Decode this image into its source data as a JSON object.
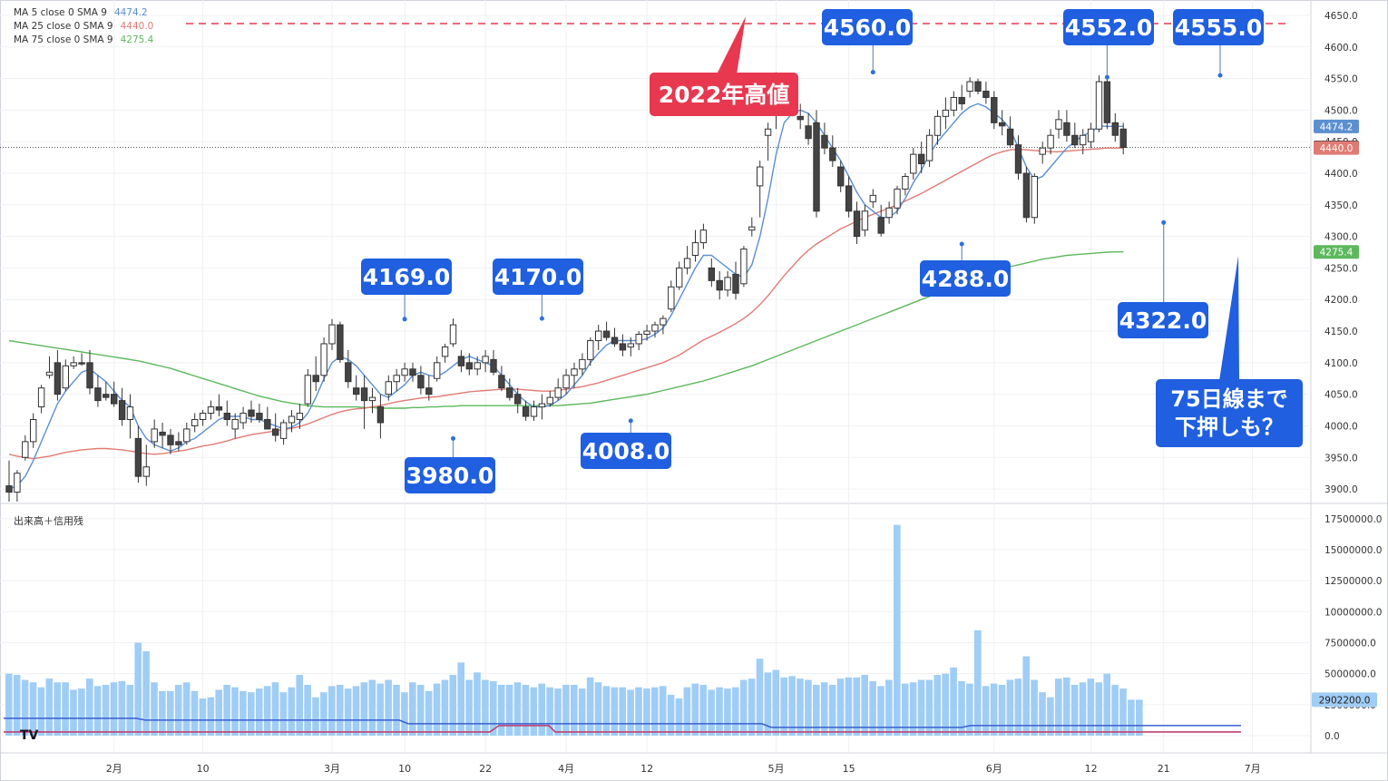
{
  "legend": [
    {
      "label": "MA 5 close 0 SMA 9",
      "value": "4474.2",
      "color": "#5b8fd0"
    },
    {
      "label": "MA 25 close 0 SMA 9",
      "value": "4440.0",
      "color": "#e07b74"
    },
    {
      "label": "MA 75 close 0 SMA 9",
      "value": "4275.4",
      "color": "#5cb85c"
    }
  ],
  "volume_pane_label": "出来高＋信用残",
  "logo_text": "TV",
  "colors": {
    "up_candle": "#ffffff",
    "down_candle": "#444444",
    "ma5": "#5b8fd0",
    "ma25": "#e07b74",
    "ma75": "#5cb85c",
    "volume": "#9fcdf5",
    "callout_blue": "#1f5fe0",
    "callout_red": "#e8384f",
    "high_line": "#e8384f",
    "margin_buy": "#3a5fd0",
    "margin_sell": "#c04070"
  },
  "price_axis": {
    "ticks": [
      "4650.0",
      "4600.0",
      "4550.0",
      "4500.0",
      "4450.0",
      "4400.0",
      "4350.0",
      "4300.0",
      "4250.0",
      "4200.0",
      "4150.0",
      "4100.0",
      "4050.0",
      "4000.0",
      "3950.0",
      "3900.0"
    ],
    "badges": [
      {
        "text": "4474.2",
        "bg": "#5b8fd0"
      },
      {
        "text": "4441.0",
        "bg": "#333333"
      },
      {
        "text": "4440.0",
        "bg": "#e07b74"
      },
      {
        "text": "4275.4",
        "bg": "#5cb85c"
      }
    ]
  },
  "volume_axis": {
    "ticks": [
      "17500000.0",
      "15000000.0",
      "12500000.0",
      "10000000.0",
      "7500000.0",
      "5000000.0",
      "2500000.0",
      "0.0"
    ],
    "badge": "2902200.0"
  },
  "x_axis_labels": [
    "2月",
    "10",
    "3月",
    "10",
    "22",
    "4月",
    "12",
    "5月",
    "15",
    "6月",
    "12",
    "21",
    "7月"
  ],
  "annotations": {
    "high_2022_label": "2022年高値",
    "callouts": [
      "4169.0",
      "4170.0",
      "3980.0",
      "4008.0",
      "4560.0",
      "4288.0",
      "4552.0",
      "4555.0",
      "4322.0"
    ],
    "note": [
      "75日線まで",
      "下押しも？"
    ]
  },
  "chart_data": {
    "type": "candlestick",
    "price_range": [
      3880,
      4660
    ],
    "volume_range": [
      0,
      18000000
    ],
    "high_2022": 4637,
    "last_price": 4441.0,
    "ohlc": [
      [
        3905,
        3945,
        3880,
        3895
      ],
      [
        3895,
        3930,
        3880,
        3925
      ],
      [
        3950,
        3985,
        3945,
        3975
      ],
      [
        3975,
        4020,
        3965,
        4010
      ],
      [
        4030,
        4065,
        4020,
        4060
      ],
      [
        4080,
        4110,
        4075,
        4085
      ],
      [
        4100,
        4120,
        4040,
        4050
      ],
      [
        4060,
        4105,
        4055,
        4095
      ],
      [
        4095,
        4110,
        4090,
        4100
      ],
      [
        4100,
        4115,
        4095,
        4098
      ],
      [
        4100,
        4120,
        4050,
        4060
      ],
      [
        4060,
        4080,
        4030,
        4040
      ],
      [
        4050,
        4070,
        4040,
        4045
      ],
      [
        4050,
        4070,
        4030,
        4035
      ],
      [
        4040,
        4060,
        4000,
        4010
      ],
      [
        4010,
        4050,
        3980,
        4030
      ],
      [
        3980,
        4000,
        3910,
        3920
      ],
      [
        3920,
        3970,
        3905,
        3935
      ],
      [
        3975,
        4010,
        3965,
        3995
      ],
      [
        3990,
        4005,
        3965,
        3985
      ],
      [
        3985,
        3995,
        3955,
        3970
      ],
      [
        3975,
        3990,
        3960,
        3970
      ],
      [
        3975,
        4005,
        3970,
        3995
      ],
      [
        4000,
        4020,
        3990,
        4010
      ],
      [
        4010,
        4025,
        4000,
        4020
      ],
      [
        4020,
        4040,
        4010,
        4030
      ],
      [
        4030,
        4050,
        4015,
        4025
      ],
      [
        4020,
        4040,
        4000,
        4010
      ],
      [
        3995,
        4020,
        3980,
        4010
      ],
      [
        4005,
        4030,
        3995,
        4020
      ],
      [
        4025,
        4040,
        4005,
        4015
      ],
      [
        4020,
        4035,
        4005,
        4010
      ],
      [
        4010,
        4030,
        4000,
        3995
      ],
      [
        3995,
        4020,
        3975,
        3985
      ],
      [
        3980,
        4010,
        3970,
        4005
      ],
      [
        4005,
        4025,
        3990,
        4015
      ],
      [
        4010,
        4035,
        3995,
        4020
      ],
      [
        4035,
        4090,
        4030,
        4080
      ],
      [
        4080,
        4110,
        4055,
        4070
      ],
      [
        4080,
        4140,
        4070,
        4130
      ],
      [
        4130,
        4169,
        4120,
        4160
      ],
      [
        4160,
        4165,
        4100,
        4105
      ],
      [
        4100,
        4120,
        4060,
        4070
      ],
      [
        4060,
        4080,
        4040,
        4050
      ],
      [
        4060,
        4080,
        3995,
        4040
      ],
      [
        4040,
        4060,
        4020,
        4045
      ],
      [
        4030,
        4050,
        3980,
        4005
      ],
      [
        4050,
        4080,
        4040,
        4070
      ],
      [
        4070,
        4090,
        4055,
        4080
      ],
      [
        4080,
        4100,
        4070,
        4090
      ],
      [
        4090,
        4100,
        4070,
        4080
      ],
      [
        4080,
        4095,
        4050,
        4060
      ],
      [
        4060,
        4080,
        4040,
        4050
      ],
      [
        4075,
        4110,
        4070,
        4100
      ],
      [
        4110,
        4130,
        4100,
        4125
      ],
      [
        4130,
        4170,
        4125,
        4160
      ],
      [
        4110,
        4120,
        4085,
        4095
      ],
      [
        4100,
        4115,
        4080,
        4090
      ],
      [
        4090,
        4110,
        4080,
        4100
      ],
      [
        4100,
        4120,
        4085,
        4110
      ],
      [
        4105,
        4120,
        4080,
        4085
      ],
      [
        4080,
        4095,
        4055,
        4060
      ],
      [
        4060,
        4075,
        4040,
        4045
      ],
      [
        4050,
        4060,
        4020,
        4035
      ],
      [
        4030,
        4040,
        4008,
        4015
      ],
      [
        4015,
        4040,
        4008,
        4030
      ],
      [
        4030,
        4050,
        4010,
        4035
      ],
      [
        4035,
        4055,
        4030,
        4045
      ],
      [
        4045,
        4075,
        4040,
        4060
      ],
      [
        4060,
        4090,
        4050,
        4080
      ],
      [
        4080,
        4100,
        4060,
        4090
      ],
      [
        4090,
        4115,
        4080,
        4105
      ],
      [
        4105,
        4140,
        4095,
        4135
      ],
      [
        4135,
        4160,
        4120,
        4150
      ],
      [
        4150,
        4165,
        4135,
        4140
      ],
      [
        4140,
        4155,
        4125,
        4130
      ],
      [
        4130,
        4145,
        4110,
        4120
      ],
      [
        4125,
        4140,
        4110,
        4130
      ],
      [
        4130,
        4150,
        4120,
        4145
      ],
      [
        4145,
        4160,
        4135,
        4150
      ],
      [
        4150,
        4165,
        4140,
        4160
      ],
      [
        4160,
        4175,
        4145,
        4170
      ],
      [
        4185,
        4230,
        4180,
        4220
      ],
      [
        4220,
        4260,
        4215,
        4250
      ],
      [
        4250,
        4285,
        4240,
        4265
      ],
      [
        4270,
        4310,
        4260,
        4290
      ],
      [
        4290,
        4320,
        4280,
        4310
      ],
      [
        4250,
        4265,
        4220,
        4230
      ],
      [
        4230,
        4245,
        4200,
        4215
      ],
      [
        4215,
        4245,
        4205,
        4235
      ],
      [
        4240,
        4260,
        4200,
        4210
      ],
      [
        4225,
        4285,
        4220,
        4280
      ],
      [
        4310,
        4330,
        4300,
        4315
      ],
      [
        4380,
        4420,
        4330,
        4410
      ],
      [
        4460,
        4480,
        4420,
        4470
      ],
      [
        4500,
        4560,
        4470,
        4520
      ],
      [
        4520,
        4540,
        4510,
        4525
      ],
      [
        4510,
        4525,
        4490,
        4500
      ],
      [
        4490,
        4510,
        4470,
        4485
      ],
      [
        4475,
        4495,
        4445,
        4455
      ],
      [
        4480,
        4500,
        4330,
        4340
      ],
      [
        4460,
        4480,
        4430,
        4440
      ],
      [
        4440,
        4460,
        4410,
        4420
      ],
      [
        4410,
        4420,
        4370,
        4380
      ],
      [
        4380,
        4395,
        4330,
        4340
      ],
      [
        4340,
        4355,
        4288,
        4300
      ],
      [
        4310,
        4350,
        4300,
        4340
      ],
      [
        4355,
        4375,
        4345,
        4365
      ],
      [
        4330,
        4350,
        4300,
        4305
      ],
      [
        4330,
        4355,
        4320,
        4345
      ],
      [
        4345,
        4380,
        4335,
        4375
      ],
      [
        4375,
        4400,
        4365,
        4395
      ],
      [
        4400,
        4440,
        4390,
        4430
      ],
      [
        4430,
        4450,
        4400,
        4415
      ],
      [
        4420,
        4470,
        4410,
        4460
      ],
      [
        4460,
        4500,
        4445,
        4490
      ],
      [
        4490,
        4520,
        4470,
        4500
      ],
      [
        4500,
        4530,
        4490,
        4520
      ],
      [
        4520,
        4540,
        4500,
        4510
      ],
      [
        4530,
        4552,
        4520,
        4545
      ],
      [
        4545,
        4550,
        4525,
        4530
      ],
      [
        4530,
        4545,
        4510,
        4520
      ],
      [
        4520,
        4530,
        4470,
        4480
      ],
      [
        4480,
        4500,
        4460,
        4475
      ],
      [
        4470,
        4490,
        4440,
        4445
      ],
      [
        4445,
        4460,
        4390,
        4400
      ],
      [
        4400,
        4410,
        4322,
        4330
      ],
      [
        4330,
        4400,
        4320,
        4395
      ],
      [
        4430,
        4450,
        4415,
        4440
      ],
      [
        4440,
        4470,
        4430,
        4460
      ],
      [
        4470,
        4500,
        4455,
        4485
      ],
      [
        4480,
        4500,
        4450,
        4460
      ],
      [
        4460,
        4480,
        4440,
        4445
      ],
      [
        4445,
        4470,
        4430,
        4460
      ],
      [
        4450,
        4480,
        4440,
        4470
      ],
      [
        4470,
        4555,
        4465,
        4545
      ],
      [
        4545,
        4555,
        4470,
        4480
      ],
      [
        4480,
        4495,
        4450,
        4460
      ],
      [
        4470,
        4480,
        4430,
        4441
      ]
    ],
    "ma5": [
      3900,
      3905,
      3920,
      3945,
      3975,
      4005,
      4035,
      4055,
      4070,
      4085,
      4090,
      4080,
      4070,
      4055,
      4040,
      4030,
      4000,
      3980,
      3970,
      3965,
      3960,
      3965,
      3975,
      3980,
      3990,
      4000,
      4010,
      4015,
      4015,
      4015,
      4010,
      4010,
      4005,
      4000,
      3995,
      3998,
      4005,
      4020,
      4045,
      4075,
      4100,
      4110,
      4105,
      4095,
      4080,
      4065,
      4050,
      4045,
      4055,
      4065,
      4080,
      4085,
      4080,
      4078,
      4085,
      4095,
      4105,
      4110,
      4105,
      4100,
      4095,
      4080,
      4065,
      4050,
      4038,
      4030,
      4030,
      4032,
      4040,
      4050,
      4065,
      4080,
      4100,
      4115,
      4128,
      4135,
      4135,
      4135,
      4135,
      4138,
      4145,
      4155,
      4175,
      4200,
      4225,
      4250,
      4270,
      4270,
      4260,
      4250,
      4240,
      4235,
      4255,
      4300,
      4360,
      4430,
      4480,
      4495,
      4500,
      4495,
      4480,
      4460,
      4440,
      4420,
      4395,
      4370,
      4350,
      4340,
      4330,
      4330,
      4340,
      4360,
      4385,
      4405,
      4430,
      4450,
      4465,
      4480,
      4495,
      4505,
      4510,
      4505,
      4495,
      4485,
      4470,
      4440,
      4410,
      4390,
      4395,
      4410,
      4425,
      4440,
      4450,
      4460,
      4465,
      4475,
      4474.2,
      4474.2,
      4474.2
    ],
    "ma25": [
      3955,
      3952,
      3950,
      3948,
      3950,
      3952,
      3955,
      3958,
      3960,
      3962,
      3963,
      3964,
      3964,
      3963,
      3962,
      3960,
      3958,
      3956,
      3955,
      3956,
      3958,
      3960,
      3962,
      3965,
      3968,
      3970,
      3973,
      3976,
      3980,
      3983,
      3986,
      3988,
      3990,
      3992,
      3994,
      3996,
      3999,
      4003,
      4008,
      4013,
      4018,
      4022,
      4025,
      4027,
      4028,
      4030,
      4032,
      4035,
      4038,
      4040,
      4042,
      4044,
      4045,
      4046,
      4048,
      4050,
      4052,
      4054,
      4055,
      4056,
      4057,
      4058,
      4058,
      4058,
      4057,
      4056,
      4055,
      4055,
      4056,
      4058,
      4060,
      4062,
      4065,
      4068,
      4072,
      4076,
      4080,
      4084,
      4088,
      4092,
      4096,
      4100,
      4106,
      4112,
      4120,
      4128,
      4136,
      4142,
      4148,
      4155,
      4162,
      4170,
      4180,
      4192,
      4206,
      4222,
      4238,
      4252,
      4266,
      4278,
      4288,
      4296,
      4304,
      4312,
      4318,
      4324,
      4330,
      4335,
      4340,
      4345,
      4350,
      4356,
      4362,
      4368,
      4375,
      4382,
      4389,
      4396,
      4403,
      4410,
      4417,
      4424,
      4430,
      4434,
      4437,
      4438,
      4437,
      4436,
      4435,
      4434,
      4434,
      4435,
      4436,
      4437,
      4438,
      4439,
      4440,
      4440,
      4440
    ],
    "ma75": [
      4135,
      4133,
      4131,
      4129,
      4127,
      4125,
      4123,
      4121,
      4119,
      4117,
      4115,
      4113,
      4111,
      4109,
      4107,
      4105,
      4103,
      4100,
      4097,
      4094,
      4091,
      4087,
      4083,
      4079,
      4075,
      4071,
      4067,
      4063,
      4059,
      4055,
      4051,
      4047,
      4044,
      4041,
      4038,
      4036,
      4034,
      4032,
      4031,
      4030,
      4030,
      4030,
      4030,
      4030,
      4029,
      4029,
      4028,
      4028,
      4028,
      4028,
      4029,
      4029,
      4030,
      4030,
      4031,
      4031,
      4032,
      4032,
      4032,
      4032,
      4032,
      4032,
      4032,
      4032,
      4032,
      4032,
      4032,
      4032,
      4032,
      4033,
      4034,
      4035,
      4036,
      4038,
      4040,
      4042,
      4044,
      4046,
      4048,
      4050,
      4053,
      4056,
      4059,
      4062,
      4065,
      4068,
      4071,
      4075,
      4079,
      4083,
      4087,
      4091,
      4095,
      4100,
      4105,
      4110,
      4115,
      4120,
      4125,
      4130,
      4135,
      4140,
      4145,
      4150,
      4155,
      4160,
      4165,
      4170,
      4175,
      4180,
      4185,
      4190,
      4195,
      4200,
      4205,
      4210,
      4215,
      4220,
      4225,
      4230,
      4235,
      4240,
      4244,
      4248,
      4252,
      4255,
      4258,
      4261,
      4264,
      4266,
      4268,
      4270,
      4271,
      4272,
      4273,
      4274,
      4275,
      4275.4,
      4275.4
    ],
    "volume": [
      5.0,
      4.9,
      4.5,
      4.3,
      3.9,
      4.6,
      4.3,
      4.3,
      3.7,
      3.8,
      4.6,
      4.0,
      4.1,
      4.3,
      4.4,
      4.1,
      7.5,
      6.8,
      4.3,
      3.6,
      3.6,
      4.1,
      4.3,
      3.6,
      3.0,
      3.1,
      3.7,
      4.1,
      3.9,
      3.6,
      3.5,
      3.8,
      4.0,
      4.3,
      3.5,
      3.9,
      4.9,
      4.1,
      3.1,
      3.5,
      4.0,
      4.1,
      3.8,
      4.0,
      4.3,
      4.5,
      4.2,
      4.5,
      4.1,
      3.5,
      4.3,
      4.1,
      3.6,
      4.2,
      4.5,
      4.9,
      5.9,
      4.5,
      5.1,
      4.5,
      4.4,
      4.1,
      4.1,
      4.3,
      4.1,
      3.9,
      4.2,
      3.9,
      3.8,
      4.1,
      4.1,
      3.8,
      4.7,
      4.3,
      4.0,
      3.9,
      3.9,
      3.7,
      3.9,
      3.8,
      3.9,
      4.0,
      3.3,
      3.0,
      3.9,
      4.2,
      4.1,
      3.7,
      3.9,
      3.8,
      3.9,
      4.5,
      4.6,
      6.2,
      5.1,
      5.3,
      4.7,
      4.8,
      4.6,
      4.5,
      4.1,
      4.3,
      4.1,
      4.6,
      4.7,
      4.7,
      4.9,
      4.4,
      4.0,
      4.5,
      17.0,
      4.2,
      4.3,
      4.5,
      4.5,
      4.9,
      5.0,
      5.5,
      4.4,
      4.2,
      8.5,
      4.0,
      4.2,
      4.1,
      4.5,
      4.6,
      6.4,
      4.5,
      3.5,
      3.1,
      4.6,
      4.7,
      4.1,
      4.3,
      4.6,
      4.3,
      5.0,
      4.1,
      3.8,
      2.9,
      2.9
    ],
    "margin_buy_level": 1.4,
    "margin_sell_level": 0.3
  }
}
